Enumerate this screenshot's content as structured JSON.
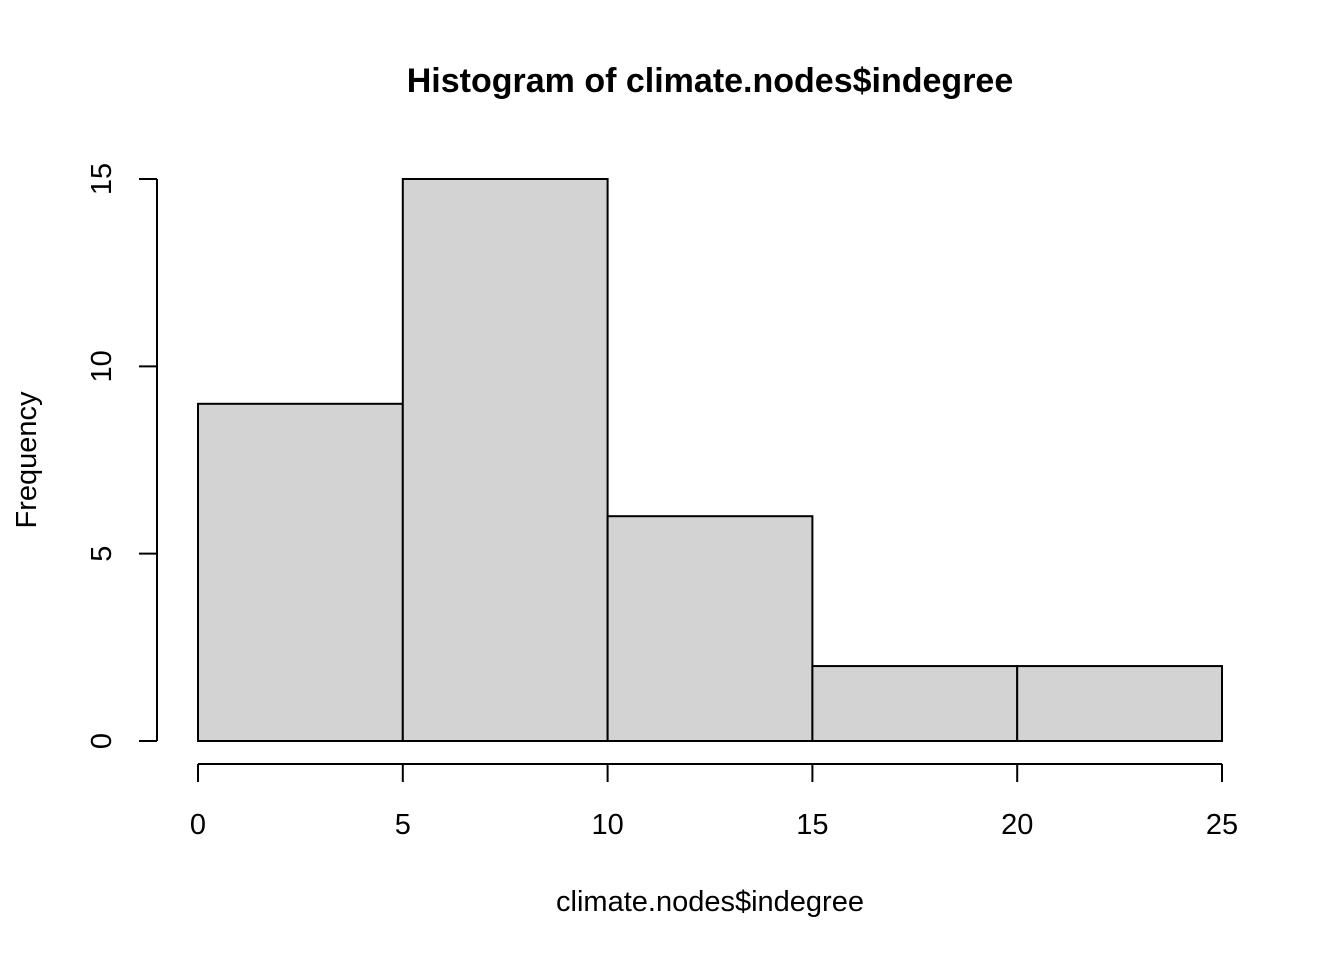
{
  "chart_data": {
    "type": "bar",
    "title": "Histogram of climate.nodes$indegree",
    "xlabel": "climate.nodes$indegree",
    "ylabel": "Frequency",
    "bins": [
      {
        "start": 0,
        "end": 5,
        "count": 9
      },
      {
        "start": 5,
        "end": 10,
        "count": 15
      },
      {
        "start": 10,
        "end": 15,
        "count": 6
      },
      {
        "start": 15,
        "end": 20,
        "count": 2
      },
      {
        "start": 20,
        "end": 25,
        "count": 2
      }
    ],
    "xlim": [
      0,
      25
    ],
    "ylim": [
      0,
      15
    ],
    "xticks": [
      0,
      5,
      10,
      15,
      20,
      25
    ],
    "yticks": [
      0,
      5,
      10,
      15
    ],
    "bar_color": "#d3d3d3",
    "grid": false,
    "legend": "none"
  }
}
